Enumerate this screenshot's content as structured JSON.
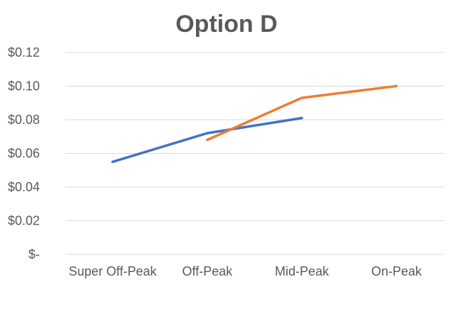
{
  "chart_data": {
    "type": "line",
    "title": "Option D",
    "xlabel": "",
    "ylabel": "",
    "categories": [
      "Super Off-Peak",
      "Off-Peak",
      "Mid-Peak",
      "On-Peak"
    ],
    "series": [
      {
        "values": [
          0.055,
          0.072,
          0.081,
          null
        ],
        "color": "#4472C4"
      },
      {
        "values": [
          null,
          0.068,
          0.093,
          0.1
        ],
        "color": "#ED7D31"
      }
    ],
    "ylim": [
      0,
      0.12
    ],
    "yticks": [
      {
        "value": 0.0,
        "label": "$-"
      },
      {
        "value": 0.02,
        "label": "$0.02"
      },
      {
        "value": 0.04,
        "label": "$0.04"
      },
      {
        "value": 0.06,
        "label": "$0.06"
      },
      {
        "value": 0.08,
        "label": "$0.08"
      },
      {
        "value": 0.1,
        "label": "$0.10"
      },
      {
        "value": 0.12,
        "label": "$0.12"
      }
    ],
    "grid": true,
    "legend": "none"
  }
}
